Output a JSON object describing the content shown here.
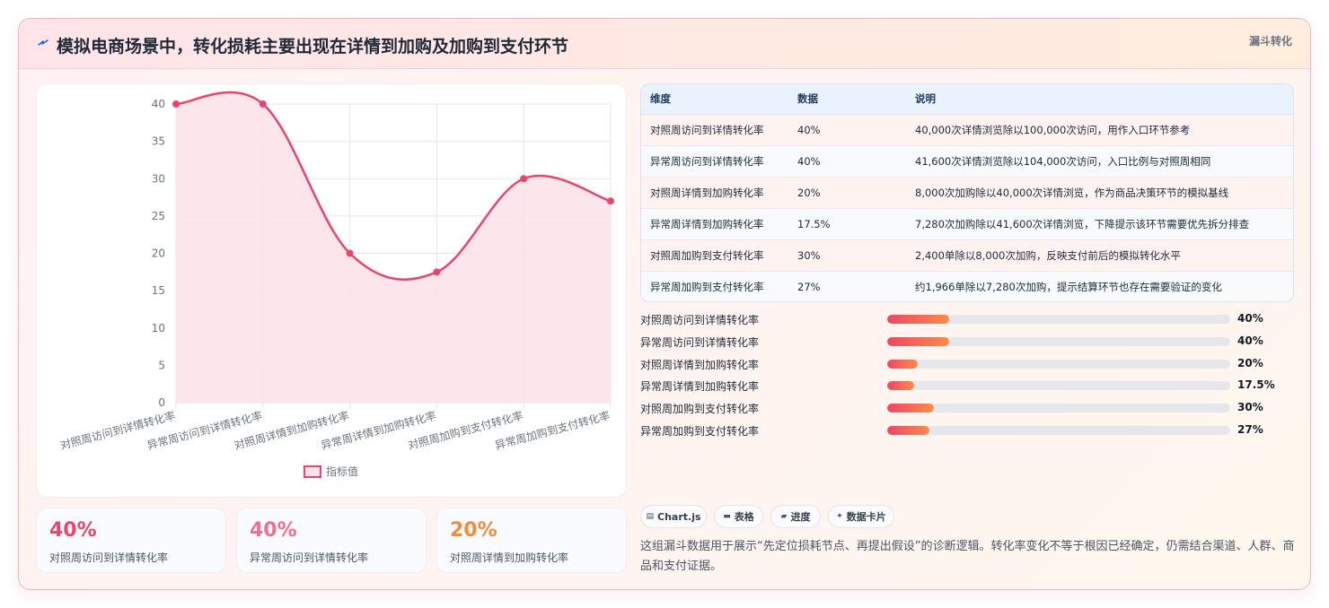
{
  "header": {
    "icon": "lightning-icon",
    "title": "模拟电商场景中，转化损耗主要出现在详情到加购及加购到支付环节",
    "tag": "漏斗转化"
  },
  "chart_data": {
    "type": "line",
    "categories": [
      "对照周访问到详情转化率",
      "异常周访问到详情转化率",
      "对照周详情到加购转化率",
      "异常周详情到加购转化率",
      "对照周加购到支付转化率",
      "异常周加购到支付转化率"
    ],
    "series": [
      {
        "name": "指标值",
        "values": [
          40,
          40,
          20,
          17.5,
          30,
          27
        ]
      }
    ],
    "ylim": [
      0,
      40
    ],
    "yticks": [
      0,
      5,
      10,
      15,
      20,
      25,
      30,
      35,
      40
    ],
    "grid": true,
    "fill": true,
    "smooth": true,
    "legend_position": "bottom",
    "colors": {
      "line": "#e8466a",
      "fill": "#fde2e7"
    }
  },
  "kpis": [
    {
      "value": "40%",
      "label": "对照周访问到详情转化率",
      "color": "#e8466a"
    },
    {
      "value": "40%",
      "label": "异常周访问到详情转化率",
      "color": "#f0728a"
    },
    {
      "value": "20%",
      "label": "对照周详情到加购转化率",
      "color": "#f28c3c"
    }
  ],
  "table": {
    "headers": [
      "维度",
      "数据",
      "说明"
    ],
    "rows": [
      [
        "对照周访问到详情转化率",
        "40%",
        "40,000次详情浏览除以100,000次访问，用作入口环节参考"
      ],
      [
        "异常周访问到详情转化率",
        "40%",
        "41,600次详情浏览除以104,000次访问，入口比例与对照周相同"
      ],
      [
        "对照周详情到加购转化率",
        "20%",
        "8,000次加购除以40,000次详情浏览，作为商品决策环节的模拟基线"
      ],
      [
        "异常周详情到加购转化率",
        "17.5%",
        "7,280次加购除以41,600次详情浏览，下降提示该环节需要优先拆分排查"
      ],
      [
        "对照周加购到支付转化率",
        "30%",
        "2,400单除以8,000次加购，反映支付前后的模拟转化水平"
      ],
      [
        "异常周加购到支付转化率",
        "27%",
        "约1,966单除以7,280次加购，提示结算环节也存在需要验证的变化"
      ]
    ]
  },
  "progress": [
    {
      "label": "对照周访问到详情转化率",
      "value_text": "40%",
      "fraction": 0.18
    },
    {
      "label": "异常周访问到详情转化率",
      "value_text": "40%",
      "fraction": 0.18
    },
    {
      "label": "对照周详情到加购转化率",
      "value_text": "20%",
      "fraction": 0.09
    },
    {
      "label": "异常周详情到加购转化率",
      "value_text": "17.5%",
      "fraction": 0.078
    },
    {
      "label": "对照周加购到支付转化率",
      "value_text": "30%",
      "fraction": 0.135
    },
    {
      "label": "异常周加购到支付转化率",
      "value_text": "27%",
      "fraction": 0.122
    }
  ],
  "chips": [
    {
      "icon": "chart-icon",
      "label": "Chart.js"
    },
    {
      "icon": "table-icon",
      "label": "表格"
    },
    {
      "icon": "progress-icon",
      "label": "进度"
    },
    {
      "icon": "sparkle-icon",
      "label": "数据卡片"
    }
  ],
  "note": "这组漏斗数据用于展示“先定位损耗节点、再提出假设”的诊断逻辑。转化率变化不等于根因已经确定，仍需结合渠道、人群、商品和支付证据。"
}
